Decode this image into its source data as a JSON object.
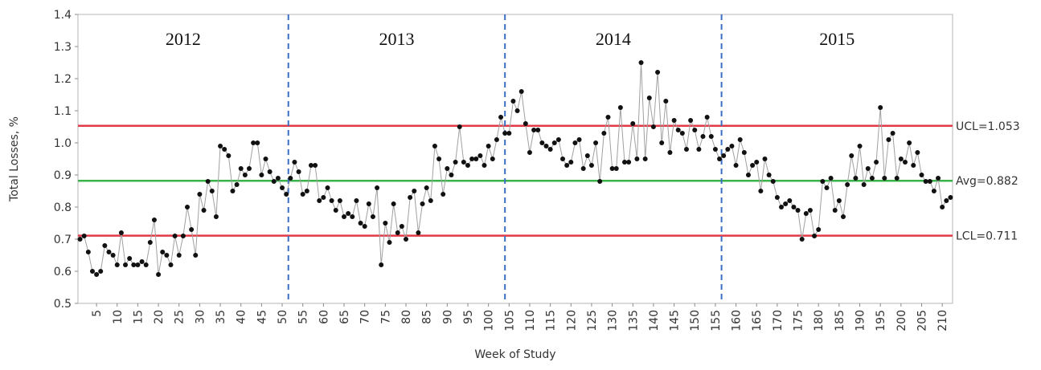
{
  "chart_data": {
    "type": "line",
    "x_label": "Week of Study",
    "y_label": "Total Losses, %",
    "xlim": [
      0.5,
      212.5
    ],
    "ylim": [
      0.5,
      1.4
    ],
    "xticks": [
      5,
      10,
      15,
      20,
      25,
      30,
      35,
      40,
      45,
      50,
      55,
      60,
      65,
      70,
      75,
      80,
      85,
      90,
      95,
      100,
      105,
      110,
      115,
      120,
      125,
      130,
      135,
      140,
      145,
      150,
      155,
      160,
      165,
      170,
      175,
      180,
      185,
      190,
      195,
      200,
      205,
      210
    ],
    "yticks": [
      0.5,
      0.6,
      0.7,
      0.8,
      0.9,
      {
        "value": 1,
        "label": "1.0"
      },
      1.1,
      1.2,
      1.3,
      1.4
    ],
    "color": "#111111",
    "line_color": "#a0a0a0",
    "dividers": [
      51.5,
      104,
      156.5
    ],
    "divider_color": "#3a6fc4",
    "period_labels": [
      "2012",
      "2013",
      "2014",
      "2015"
    ],
    "reference_lines": [
      {
        "value": 1.053,
        "label": "UCL=1.053",
        "color": "#e23a47"
      },
      {
        "value": 0.882,
        "label": "Avg=0.882",
        "color": "#3bb34a"
      },
      {
        "value": 0.711,
        "label": "LCL=0.711",
        "color": "#e23a47"
      }
    ],
    "x": [
      1,
      2,
      3,
      4,
      5,
      6,
      7,
      8,
      9,
      10,
      11,
      12,
      13,
      14,
      15,
      16,
      17,
      18,
      19,
      20,
      21,
      22,
      23,
      24,
      25,
      26,
      27,
      28,
      29,
      30,
      31,
      32,
      33,
      34,
      35,
      36,
      37,
      38,
      39,
      40,
      41,
      42,
      43,
      44,
      45,
      46,
      47,
      48,
      49,
      50,
      51,
      52,
      53,
      54,
      55,
      56,
      57,
      58,
      59,
      60,
      61,
      62,
      63,
      64,
      65,
      66,
      67,
      68,
      69,
      70,
      71,
      72,
      73,
      74,
      75,
      76,
      77,
      78,
      79,
      80,
      81,
      82,
      83,
      84,
      85,
      86,
      87,
      88,
      89,
      90,
      91,
      92,
      93,
      94,
      95,
      96,
      97,
      98,
      99,
      100,
      101,
      102,
      103,
      104,
      105,
      106,
      107,
      108,
      109,
      110,
      111,
      112,
      113,
      114,
      115,
      116,
      117,
      118,
      119,
      120,
      121,
      122,
      123,
      124,
      125,
      126,
      127,
      128,
      129,
      130,
      131,
      132,
      133,
      134,
      135,
      136,
      137,
      138,
      139,
      140,
      141,
      142,
      143,
      144,
      145,
      146,
      147,
      148,
      149,
      150,
      151,
      152,
      153,
      154,
      155,
      156,
      157,
      158,
      159,
      160,
      161,
      162,
      163,
      164,
      165,
      166,
      167,
      168,
      169,
      170,
      171,
      172,
      173,
      174,
      175,
      176,
      177,
      178,
      179,
      180,
      181,
      182,
      183,
      184,
      185,
      186,
      187,
      188,
      189,
      190,
      191,
      192,
      193,
      194,
      195,
      196,
      197,
      198,
      199,
      200,
      201,
      202,
      203,
      204,
      205,
      206,
      207,
      208,
      209,
      210,
      211,
      212
    ],
    "values": [
      0.7,
      0.71,
      0.66,
      0.6,
      0.59,
      0.6,
      0.68,
      0.66,
      0.65,
      0.62,
      0.72,
      0.62,
      0.64,
      0.62,
      0.62,
      0.63,
      0.62,
      0.69,
      0.76,
      0.59,
      0.66,
      0.65,
      0.62,
      0.71,
      0.65,
      0.71,
      0.8,
      0.73,
      0.65,
      0.84,
      0.79,
      0.88,
      0.85,
      0.77,
      0.99,
      0.98,
      0.96,
      0.85,
      0.87,
      0.92,
      0.9,
      0.92,
      1.0,
      1.0,
      0.9,
      0.95,
      0.91,
      0.88,
      0.89,
      0.86,
      0.84,
      0.89,
      0.94,
      0.91,
      0.84,
      0.85,
      0.93,
      0.93,
      0.82,
      0.83,
      0.86,
      0.82,
      0.79,
      0.82,
      0.77,
      0.78,
      0.77,
      0.82,
      0.75,
      0.74,
      0.81,
      0.77,
      0.86,
      0.62,
      0.75,
      0.69,
      0.81,
      0.72,
      0.74,
      0.7,
      0.83,
      0.85,
      0.72,
      0.81,
      0.86,
      0.82,
      0.99,
      0.95,
      0.84,
      0.92,
      0.9,
      0.94,
      1.05,
      0.94,
      0.93,
      0.95,
      0.95,
      0.96,
      0.93,
      0.99,
      0.95,
      1.01,
      1.08,
      1.03,
      1.03,
      1.13,
      1.1,
      1.16,
      1.06,
      0.97,
      1.04,
      1.04,
      1.0,
      0.99,
      0.98,
      1.0,
      1.01,
      0.95,
      0.93,
      0.94,
      1.0,
      1.01,
      0.92,
      0.96,
      0.93,
      1.0,
      0.88,
      1.03,
      1.08,
      0.92,
      0.92,
      1.11,
      0.94,
      0.94,
      1.06,
      0.95,
      1.25,
      0.95,
      1.14,
      1.05,
      1.22,
      1.0,
      1.13,
      0.97,
      1.07,
      1.04,
      1.03,
      0.98,
      1.07,
      1.04,
      0.98,
      1.02,
      1.08,
      1.02,
      0.98,
      0.95,
      0.96,
      0.98,
      0.99,
      0.93,
      1.01,
      0.97,
      0.9,
      0.93,
      0.94,
      0.85,
      0.95,
      0.9,
      0.88,
      0.83,
      0.8,
      0.81,
      0.82,
      0.8,
      0.79,
      0.7,
      0.78,
      0.79,
      0.71,
      0.73,
      0.88,
      0.86,
      0.89,
      0.79,
      0.82,
      0.77,
      0.87,
      0.96,
      0.89,
      0.99,
      0.87,
      0.92,
      0.89,
      0.94,
      1.11,
      0.89,
      1.01,
      1.03,
      0.89,
      0.95,
      0.94,
      1.0,
      0.93,
      0.97,
      0.9,
      0.88,
      0.88,
      0.85,
      0.89,
      0.8,
      0.82,
      0.83
    ]
  }
}
